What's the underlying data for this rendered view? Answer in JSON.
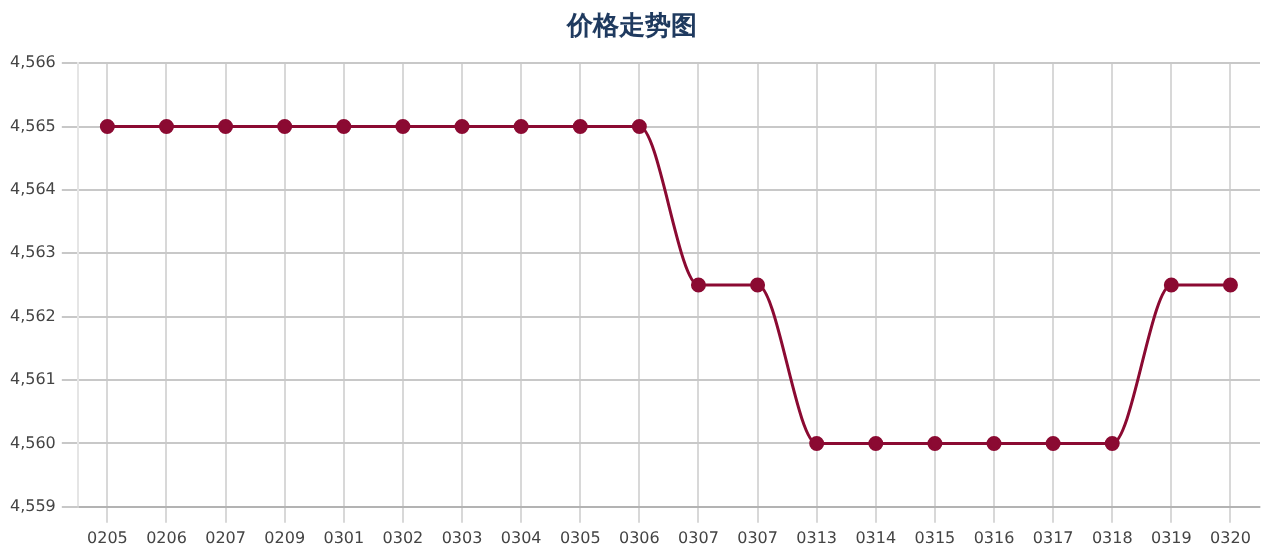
{
  "chart_data": {
    "type": "line",
    "title": "价格走势图",
    "categories": [
      "0205",
      "0206",
      "0207",
      "0209",
      "0301",
      "0302",
      "0303",
      "0304",
      "0305",
      "0306",
      "0307",
      "0307",
      "0313",
      "0314",
      "0315",
      "0316",
      "0317",
      "0318",
      "0319",
      "0320"
    ],
    "series": [
      {
        "color": "#8b0a32",
        "values": [
          4565,
          4565,
          4565,
          4565,
          4565,
          4565,
          4565,
          4565,
          4565,
          4565,
          4562.5,
          4562.5,
          4560,
          4560,
          4560,
          4560,
          4560,
          4560,
          4562.5,
          4562.5
        ]
      }
    ],
    "ylim": [
      4559,
      4566
    ],
    "yticks": [
      {
        "value": 4559,
        "label": "4,559"
      },
      {
        "value": 4560,
        "label": "4,560"
      },
      {
        "value": 4561,
        "label": "4,561"
      },
      {
        "value": 4562,
        "label": "4,562"
      },
      {
        "value": 4563,
        "label": "4,563"
      },
      {
        "value": 4564,
        "label": "4,564"
      },
      {
        "value": 4565,
        "label": "4,565"
      },
      {
        "value": 4566,
        "label": "4,566"
      }
    ],
    "grid": true,
    "legend": false,
    "marker": "circle",
    "line_style": "solid"
  }
}
